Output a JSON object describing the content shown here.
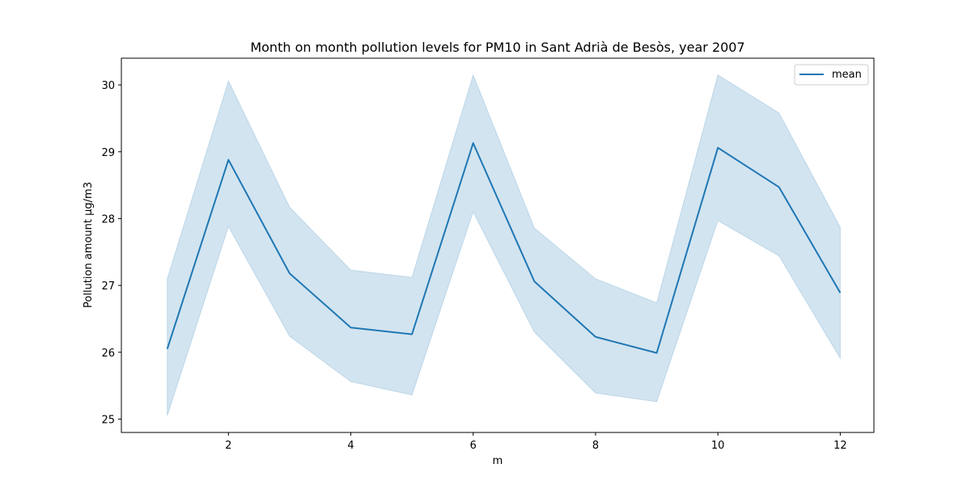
{
  "chart_data": {
    "type": "line",
    "title": "Month on month pollution levels for PM10 in Sant Adrià de Besòs, year 2007",
    "xlabel": "m",
    "ylabel": "Pollution amount µg/m3",
    "xlim": [
      0.25,
      12.55
    ],
    "ylim": [
      24.8,
      30.4
    ],
    "xticks": [
      2,
      4,
      6,
      8,
      10,
      12
    ],
    "yticks": [
      25,
      26,
      27,
      28,
      29,
      30
    ],
    "grid": false,
    "legend_position": "top-right",
    "series": [
      {
        "name": "mean",
        "color": "#1f77b4",
        "x": [
          1,
          2,
          3,
          4,
          5,
          6,
          7,
          8,
          9,
          10,
          11,
          12
        ],
        "values": [
          26.05,
          28.88,
          27.18,
          26.37,
          26.27,
          29.13,
          27.06,
          26.23,
          25.99,
          29.06,
          28.47,
          26.89
        ],
        "lower": [
          25.05,
          27.88,
          26.24,
          25.56,
          25.36,
          28.1,
          26.3,
          25.39,
          25.26,
          27.97,
          27.44,
          25.91
        ],
        "upper": [
          27.1,
          30.06,
          28.17,
          27.23,
          27.12,
          30.15,
          27.86,
          27.1,
          26.74,
          30.15,
          29.58,
          27.87
        ]
      }
    ]
  }
}
